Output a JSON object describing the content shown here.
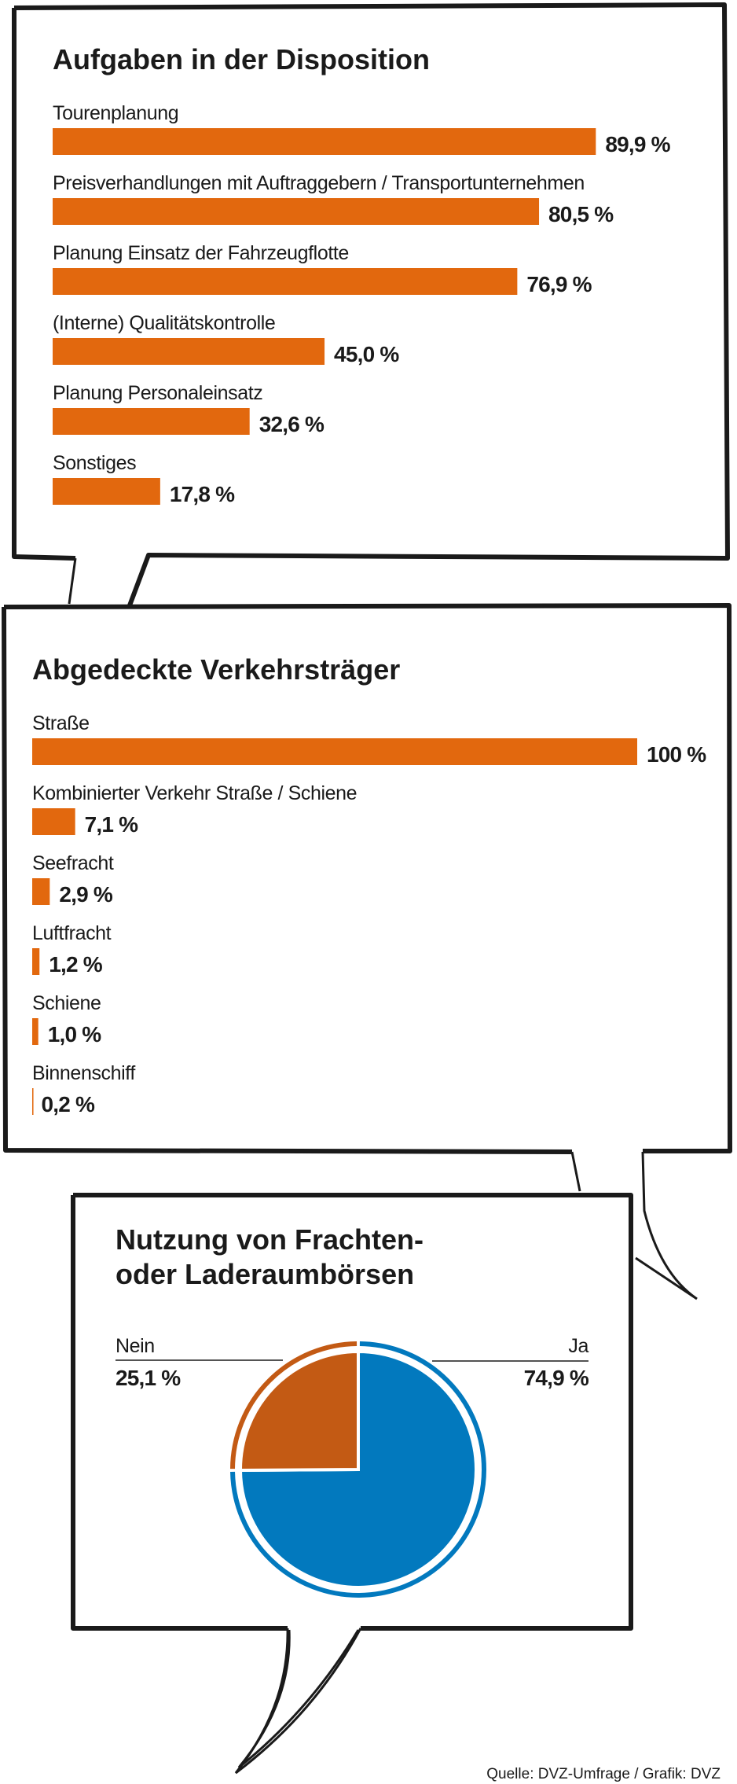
{
  "colors": {
    "bar": "#E2680E",
    "ja": "#0279BE",
    "nein": "#C35A14",
    "text": "#1a1a1a"
  },
  "chart_data": [
    {
      "type": "bar",
      "orientation": "horizontal",
      "title": "Aufgaben in der Disposition",
      "categories": [
        "Tourenplanung",
        "Preisverhandlungen mit Auftraggebern / Transportunternehmen",
        "Planung Einsatz der Fahrzeugflotte",
        "(Interne) Qualitätskontrolle",
        "Planung Personaleinsatz",
        "Sonstiges"
      ],
      "values": [
        89.9,
        80.5,
        76.9,
        45.0,
        32.6,
        17.8
      ],
      "value_labels": [
        "89,9 %",
        "80,5 %",
        "76,9 %",
        "45,0 %",
        "32,6 %",
        "17,8 %"
      ],
      "xlim": [
        0,
        100
      ],
      "grid": false
    },
    {
      "type": "bar",
      "orientation": "horizontal",
      "title": "Abgedeckte Verkehrsträger",
      "categories": [
        "Straße",
        "Kombinierter Verkehr Straße / Schiene",
        "Seefracht",
        "Luftfracht",
        "Schiene",
        "Binnenschiff"
      ],
      "values": [
        100,
        7.1,
        2.9,
        1.2,
        1.0,
        0.2
      ],
      "value_labels": [
        "100 %",
        "7,1 %",
        "2,9 %",
        "1,2 %",
        "1,0 %",
        "0,2 %"
      ],
      "xlim": [
        0,
        100
      ],
      "grid": false
    },
    {
      "type": "pie",
      "title_lines": [
        "Nutzung von Frachten-",
        "oder Laderaumbörsen"
      ],
      "slices": [
        {
          "label": "Ja",
          "value": 74.9,
          "value_label": "74,9 %",
          "color": "#0279BE"
        },
        {
          "label": "Nein",
          "value": 25.1,
          "value_label": "25,1 %",
          "color": "#C35A14"
        }
      ]
    }
  ],
  "source": "Quelle: DVZ-Umfrage / Grafik: DVZ"
}
